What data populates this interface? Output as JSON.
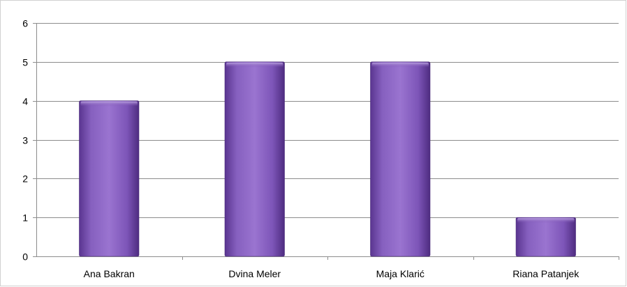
{
  "chart_data": {
    "type": "bar",
    "categories": [
      "Ana Bakran",
      "Dvina Meler",
      "Maja Klarić",
      "Riana Patanjek"
    ],
    "values": [
      4,
      5,
      5,
      1
    ],
    "title": "",
    "xlabel": "",
    "ylabel": "",
    "ylim": [
      0,
      6
    ],
    "yticks": [
      0,
      1,
      2,
      3,
      4,
      5,
      6
    ],
    "grid": true,
    "legend": "none",
    "bar_color": "#7a4fb0"
  }
}
